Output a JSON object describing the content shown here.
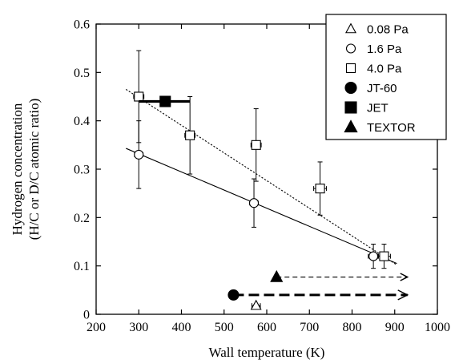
{
  "chart_data": {
    "type": "scatter",
    "xlabel": "Wall temperature (K)",
    "ylabel_lines": [
      "Hydrogen concentration",
      "(H/C or D/C atomic ratio)"
    ],
    "xlim": [
      200,
      1000
    ],
    "ylim": [
      0,
      0.6
    ],
    "xticks": [
      200,
      300,
      400,
      500,
      600,
      700,
      800,
      900,
      1000
    ],
    "yticks": [
      0,
      0.1,
      0.2,
      0.3,
      0.4,
      0.5,
      0.6
    ],
    "xtick_labels": [
      "200",
      "300",
      "400",
      "500",
      "600",
      "700",
      "800",
      "900",
      "1000"
    ],
    "ytick_labels": [
      "0",
      "0.1",
      "0.2",
      "0.3",
      "0.4",
      "0.5",
      "0.6"
    ],
    "legend_position": "top-right",
    "series": [
      {
        "name": "0.08 Pa",
        "marker": "triangle-open",
        "points": [
          {
            "x": 575,
            "y": 0.018,
            "xerr": 10,
            "yerr": 0
          }
        ]
      },
      {
        "name": "1.6 Pa",
        "marker": "circle-open",
        "points": [
          {
            "x": 300,
            "y": 0.33,
            "xerr": 10,
            "yerr": 0.07
          },
          {
            "x": 570,
            "y": 0.23,
            "xerr": 10,
            "yerr": 0.05
          },
          {
            "x": 850,
            "y": 0.12,
            "xerr": 12,
            "yerr": 0.025
          }
        ]
      },
      {
        "name": "4.0 Pa",
        "marker": "square-open",
        "points": [
          {
            "x": 300,
            "y": 0.45,
            "xerr": 12,
            "yerr": 0.095
          },
          {
            "x": 420,
            "y": 0.37,
            "xerr": 12,
            "yerr": 0.08
          },
          {
            "x": 575,
            "y": 0.35,
            "xerr": 12,
            "yerr": 0.075
          },
          {
            "x": 725,
            "y": 0.26,
            "xerr": 15,
            "yerr": 0.055
          },
          {
            "x": 875,
            "y": 0.12,
            "xerr": 15,
            "yerr": 0.025
          }
        ]
      },
      {
        "name": "JT-60",
        "marker": "circle-filled",
        "points": [
          {
            "x": 522,
            "y": 0.04
          }
        ],
        "arrow_to_x": 930
      },
      {
        "name": "JET",
        "marker": "square-filled",
        "points": [
          {
            "x": 362,
            "y": 0.44
          }
        ],
        "range_x": [
          300,
          420
        ]
      },
      {
        "name": "TEXTOR",
        "marker": "triangle-filled",
        "points": [
          {
            "x": 623,
            "y": 0.077
          }
        ],
        "arrow_to_x": 930
      }
    ],
    "fit_lines": [
      {
        "series": "1.6 Pa",
        "style": "solid",
        "x": [
          270,
          905
        ],
        "y": [
          0.343,
          0.105
        ]
      },
      {
        "series": "4.0 Pa",
        "style": "dotted",
        "x": [
          270,
          905
        ],
        "y": [
          0.465,
          0.102
        ]
      }
    ]
  }
}
